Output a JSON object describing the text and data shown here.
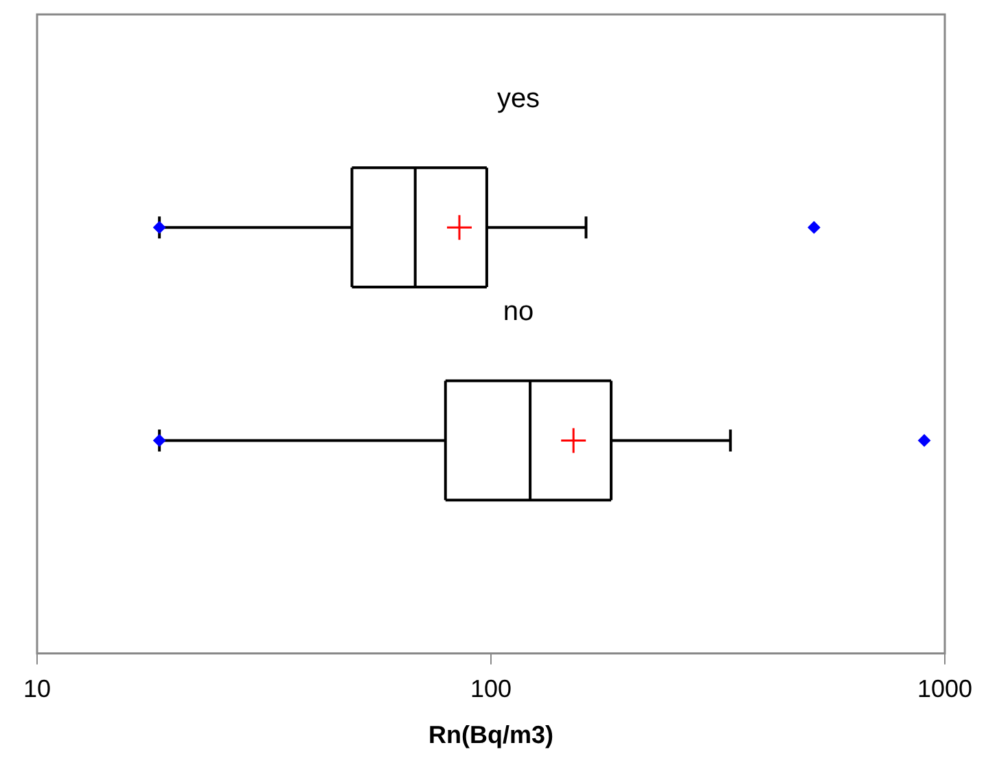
{
  "chart_data": {
    "type": "box",
    "orientation": "horizontal",
    "log": "x",
    "categories": [
      "yes",
      "no"
    ],
    "boxes": [
      {
        "low": 18.6,
        "q1": 49.4,
        "median": 68.1,
        "q3": 97.9,
        "high": 162,
        "mean": 85.2,
        "outliers": [
          18.6,
          515
        ]
      },
      {
        "low": 18.6,
        "q1": 79.4,
        "median": 122,
        "q3": 184,
        "high": 337,
        "mean": 152,
        "outliers": [
          18.6,
          901
        ]
      }
    ],
    "xlabel": "Rn(Bq/m3)",
    "xlim": [
      10,
      1000
    ],
    "xticks": [
      10,
      100,
      1000
    ],
    "grid": false,
    "legend": false
  }
}
